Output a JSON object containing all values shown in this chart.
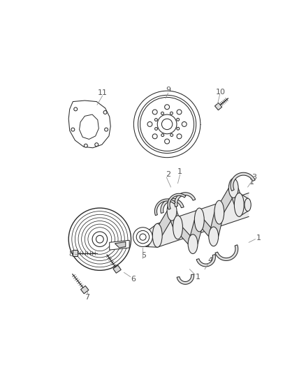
{
  "bg_color": "#ffffff",
  "line_color": "#2a2a2a",
  "lw": 0.75,
  "figsize": [
    4.38,
    5.33
  ],
  "dpi": 100,
  "label_fontsize": 8.0,
  "label_color": "#555555"
}
